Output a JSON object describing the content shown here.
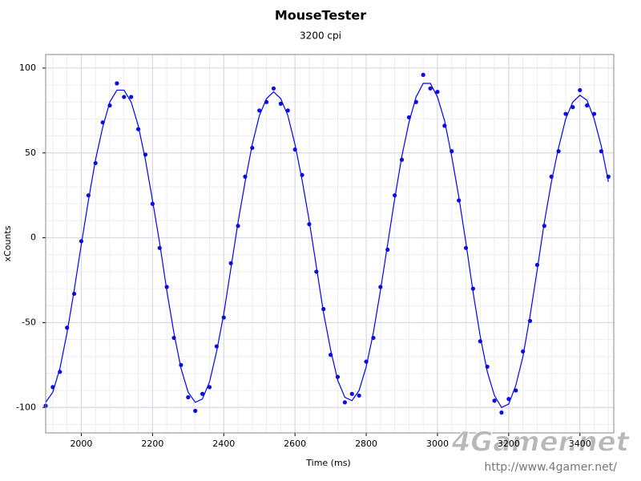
{
  "chart_data": {
    "type": "scatter",
    "title": "MouseTester",
    "subtitle": "3200 cpi",
    "x_label": "Time (ms)",
    "y_label": "xCounts",
    "x": [
      1900,
      1920,
      1940,
      1960,
      1980,
      2000,
      2020,
      2040,
      2060,
      2080,
      2100,
      2120,
      2140,
      2160,
      2180,
      2200,
      2220,
      2240,
      2260,
      2280,
      2300,
      2320,
      2340,
      2360,
      2380,
      2400,
      2420,
      2440,
      2460,
      2480,
      2500,
      2520,
      2540,
      2560,
      2580,
      2600,
      2620,
      2640,
      2660,
      2680,
      2700,
      2720,
      2740,
      2760,
      2780,
      2800,
      2820,
      2840,
      2860,
      2880,
      2900,
      2920,
      2940,
      2960,
      2980,
      3000,
      3020,
      3040,
      3060,
      3080,
      3100,
      3120,
      3140,
      3160,
      3180,
      3200,
      3220,
      3240,
      3260,
      3280,
      3300,
      3320,
      3340,
      3360,
      3380,
      3400,
      3420,
      3440,
      3460,
      3480
    ],
    "series": [
      {
        "mode": "line",
        "color": "#0000ff",
        "values": [
          -97,
          -91,
          -77,
          -56,
          -31,
          -4,
          22,
          46,
          65,
          80,
          87,
          87,
          80,
          66,
          46,
          22,
          -3,
          -31,
          -56,
          -77,
          -91,
          -97,
          -95,
          -85,
          -67,
          -45,
          -18,
          9,
          33,
          55,
          72,
          82,
          86,
          82,
          72,
          55,
          34,
          10,
          -17,
          -44,
          -66,
          -84,
          -94,
          -96,
          -90,
          -76,
          -56,
          -31,
          -4,
          23,
          48,
          68,
          83,
          91,
          91,
          83,
          69,
          48,
          24,
          -3,
          -32,
          -58,
          -79,
          -93,
          -100,
          -98,
          -87,
          -70,
          -46,
          -19,
          9,
          33,
          53,
          70,
          80,
          84,
          81,
          70,
          54,
          33
        ]
      },
      {
        "mode": "markers",
        "color": "#0a0ae6",
        "values": [
          -99,
          -88,
          -79,
          -53,
          -33,
          -2,
          25,
          44,
          68,
          78,
          91,
          83,
          83,
          64,
          49,
          20,
          -6,
          -29,
          -59,
          -75,
          -94,
          -102,
          -92,
          -88,
          -64,
          -47,
          -15,
          7,
          36,
          53,
          75,
          80,
          88,
          79,
          75,
          52,
          37,
          8,
          -20,
          -42,
          -69,
          -82,
          -97,
          -92,
          -93,
          -73,
          -59,
          -29,
          -7,
          25,
          46,
          71,
          80,
          96,
          88,
          86,
          66,
          51,
          22,
          -6,
          -30,
          -61,
          -76,
          -96,
          -103,
          -95,
          -90,
          -67,
          -49,
          -16,
          7,
          36,
          51,
          73,
          77,
          87,
          78,
          73,
          51,
          36
        ]
      }
    ],
    "xlim": [
      1900,
      3495
    ],
    "ylim": [
      -115,
      108
    ],
    "xticks": [
      2000,
      2200,
      2400,
      2600,
      2800,
      3000,
      3200,
      3400
    ],
    "yticks": [
      -100,
      -50,
      0,
      50,
      100
    ],
    "grid": true
  },
  "watermark": {
    "logo": "4Gamer.net",
    "url": "http://www.4gamer.net/"
  }
}
